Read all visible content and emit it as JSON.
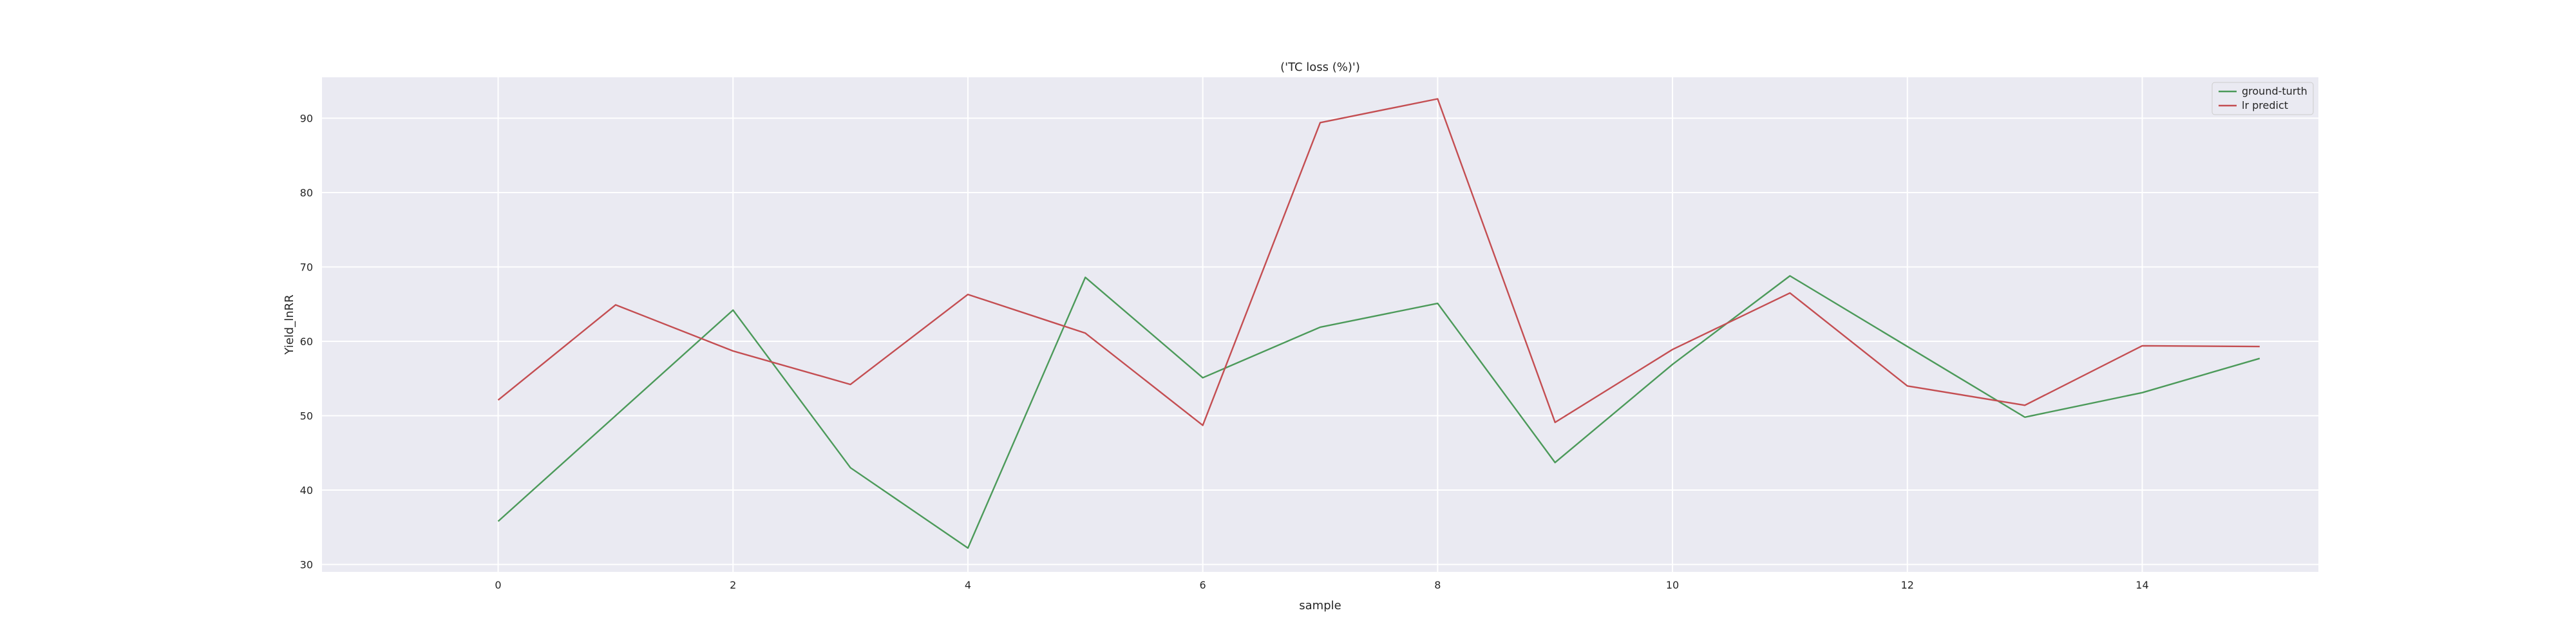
{
  "chart_data": {
    "type": "line",
    "title": "('TC loss (%)')",
    "xlabel": "sample",
    "ylabel": "Yield_lnRR",
    "x": [
      0,
      1,
      2,
      3,
      4,
      5,
      6,
      7,
      8,
      9,
      10,
      11,
      12,
      13,
      14,
      15
    ],
    "xlim": [
      -1.5,
      15.5
    ],
    "ylim": [
      29,
      95.5
    ],
    "xticks": [
      0,
      2,
      4,
      6,
      8,
      10,
      12,
      14
    ],
    "yticks": [
      30,
      40,
      50,
      60,
      70,
      80,
      90
    ],
    "grid": true,
    "legend_position": "top-right",
    "series": [
      {
        "name": "ground-turth",
        "color": "#4c9a5a",
        "values": [
          35.8,
          50.0,
          64.2,
          43.0,
          32.2,
          68.6,
          55.1,
          61.9,
          65.1,
          43.7,
          56.9,
          68.8,
          59.3,
          49.8,
          53.1,
          57.7
        ]
      },
      {
        "name": "lr predict",
        "color": "#c44e52",
        "values": [
          52.1,
          64.9,
          58.7,
          54.2,
          66.3,
          61.1,
          48.7,
          89.4,
          92.6,
          49.1,
          58.9,
          66.5,
          54.0,
          51.4,
          59.4,
          59.3
        ]
      }
    ],
    "colors": {
      "plot_background": "#eaeaf2",
      "grid": "#ffffff",
      "text": "#262626"
    }
  }
}
